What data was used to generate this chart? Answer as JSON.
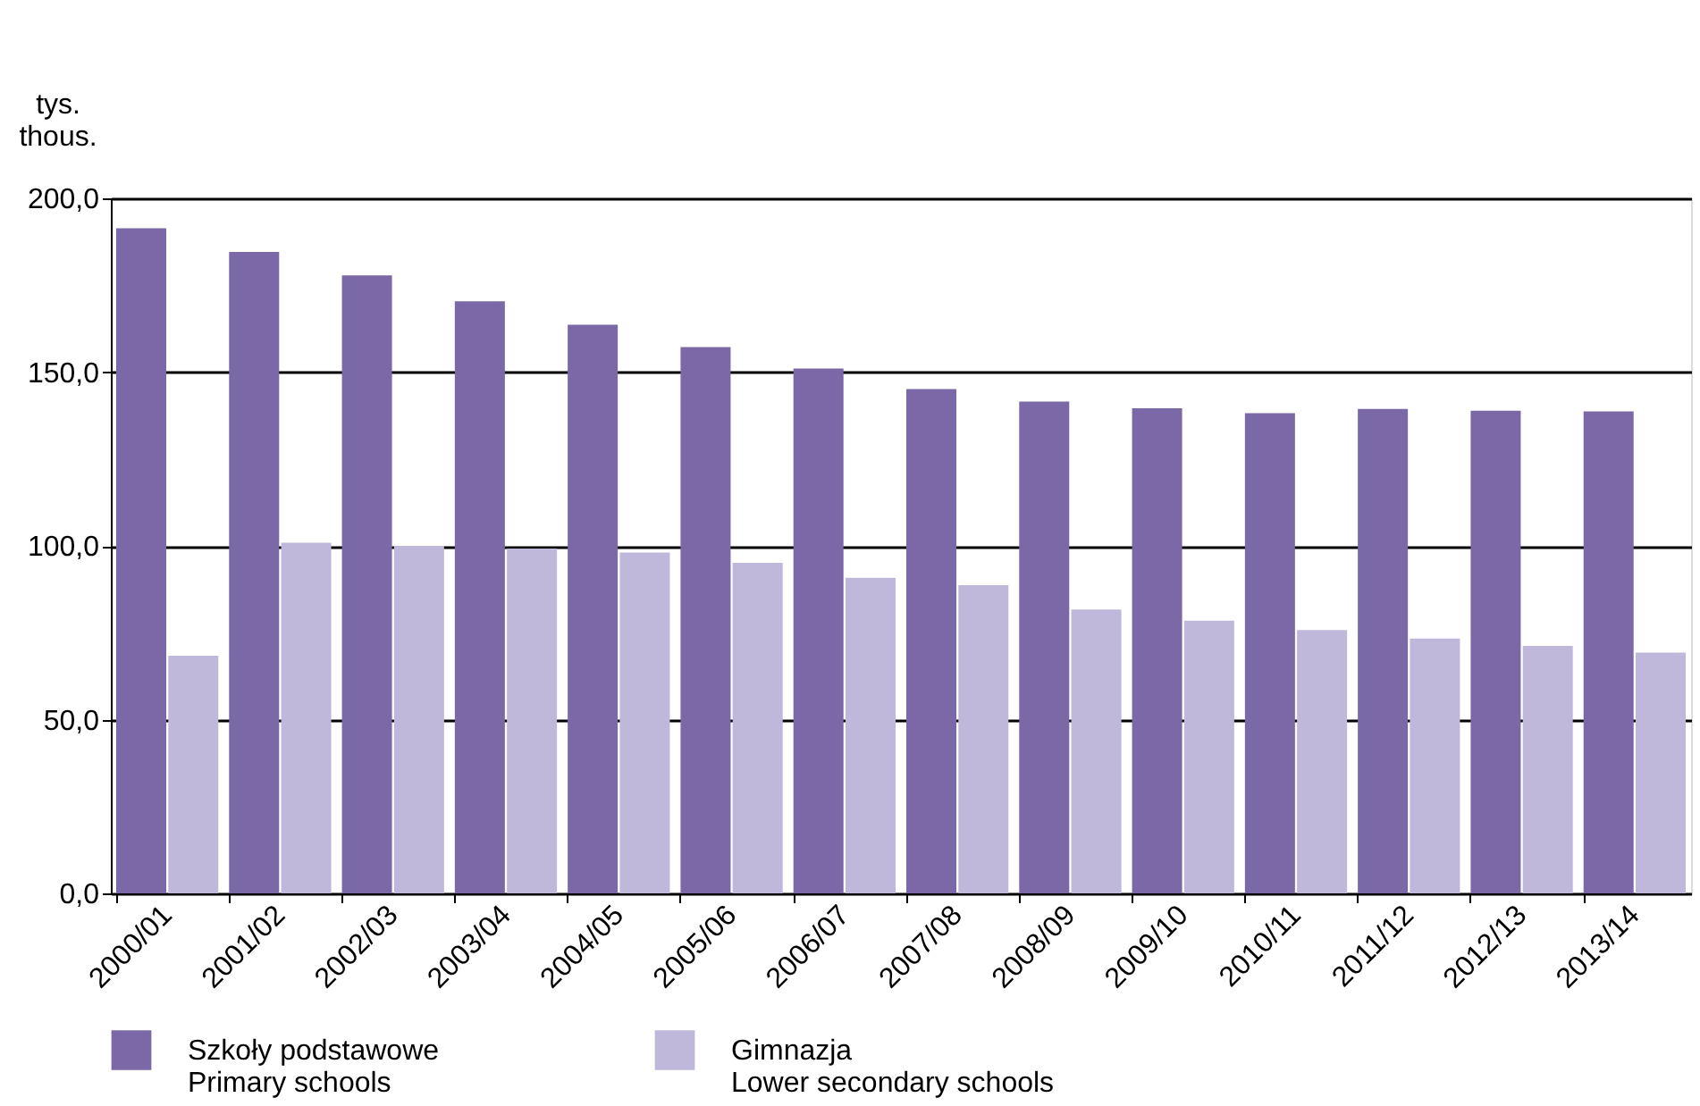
{
  "chart_data": {
    "type": "bar",
    "ylabel": "tys.\nthous.",
    "categories": [
      "2000/01",
      "2001/02",
      "2002/03",
      "2003/04",
      "2004/05",
      "2005/06",
      "2006/07",
      "2007/08",
      "2008/09",
      "2009/10",
      "2010/11",
      "2011/12",
      "2012/13",
      "2013/14"
    ],
    "series": [
      {
        "name": "Szkoły podstawowe\nPrimary schools",
        "color": "#7b68a6",
        "values": [
          191.4,
          184.6,
          177.8,
          170.4,
          163.6,
          157.2,
          151.0,
          145.1,
          141.5,
          139.6,
          138.2,
          139.4,
          138.9,
          138.7
        ]
      },
      {
        "name": "Gimnazja\nLower secondary schools",
        "color": "#bfb8da",
        "values": [
          68.4,
          100.9,
          100.0,
          99.2,
          98.1,
          95.1,
          90.8,
          88.7,
          81.7,
          78.5,
          75.8,
          73.3,
          71.2,
          69.3
        ]
      }
    ],
    "ylim": [
      0,
      200
    ],
    "yticks": [
      {
        "value": 0,
        "label": "0,0"
      },
      {
        "value": 50,
        "label": "50,0"
      },
      {
        "value": 100,
        "label": "100,0"
      },
      {
        "value": 150,
        "label": "150,0"
      },
      {
        "value": 200,
        "label": "200,0"
      }
    ],
    "grid": "y",
    "legend": "bottom"
  }
}
